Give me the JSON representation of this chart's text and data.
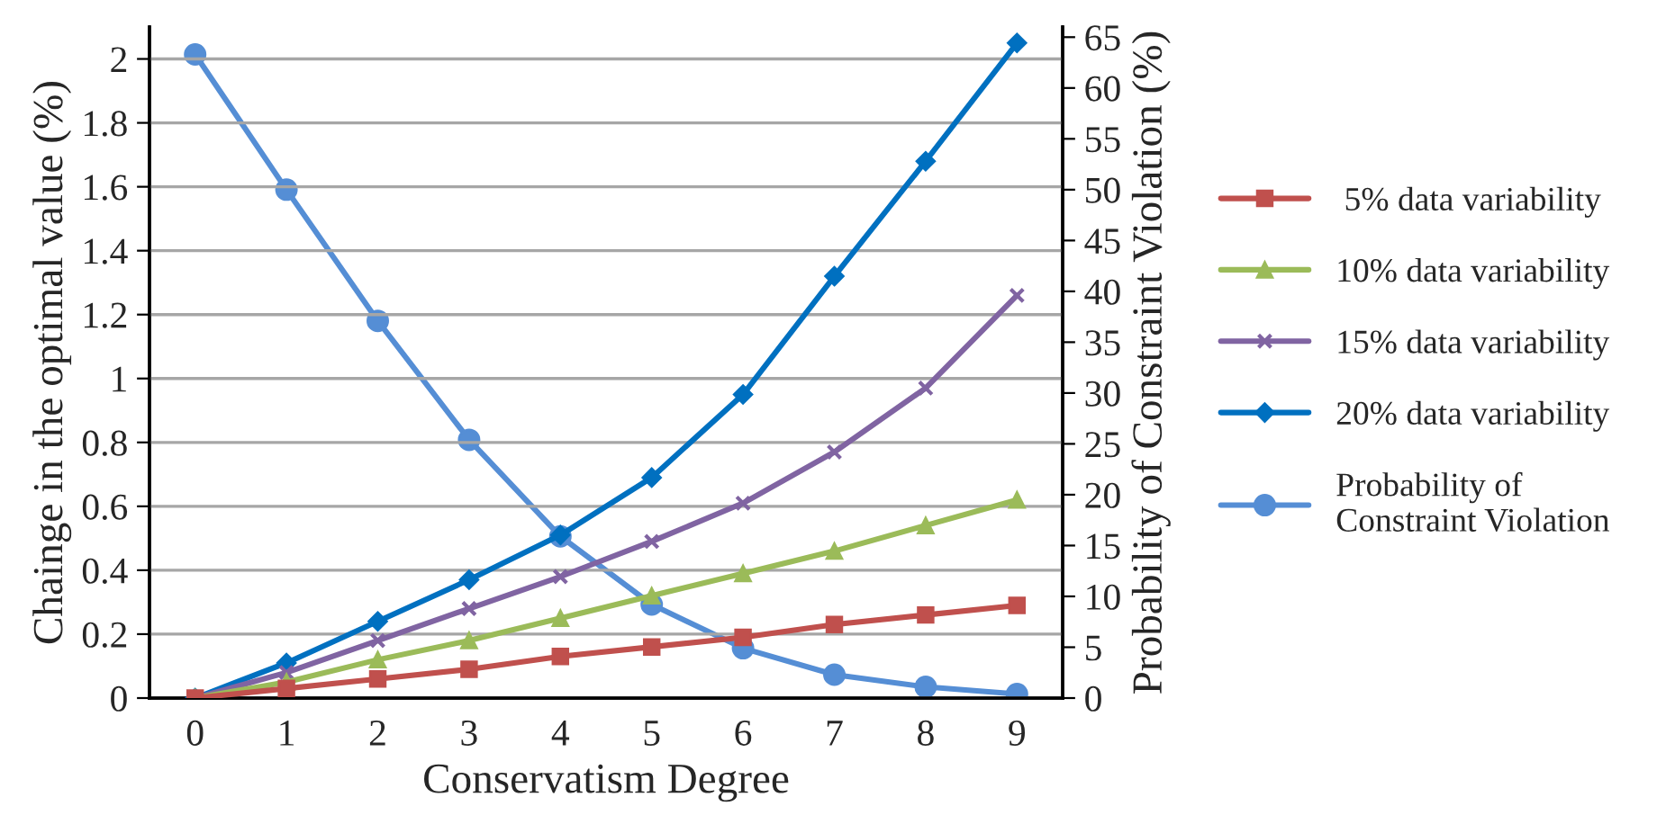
{
  "chart_data": {
    "type": "line",
    "xlabel": "Conservatism Degree",
    "ylabel": "Chainge in the optimal value (%)",
    "y2label": "Probability of Constraint Violation (%)",
    "categories": [
      "0",
      "1",
      "2",
      "3",
      "4",
      "5",
      "6",
      "7",
      "8",
      "9"
    ],
    "ylim": [
      0,
      2.1
    ],
    "yticks": [
      0,
      0.2,
      0.4,
      0.6,
      0.8,
      1,
      1.2,
      1.4,
      1.6,
      1.8,
      2
    ],
    "y2lim": [
      0,
      66
    ],
    "y2ticks": [
      0,
      5,
      10,
      15,
      20,
      25,
      30,
      35,
      40,
      45,
      50,
      55,
      60,
      65
    ],
    "grid": "y",
    "legend": "right",
    "series": [
      {
        "name": " 5% data variability",
        "color": "#c0504d",
        "marker": "square",
        "values": [
          0,
          0.03,
          0.06,
          0.09,
          0.13,
          0.16,
          0.19,
          0.23,
          0.26,
          0.29
        ]
      },
      {
        "name": "10% data variability",
        "color": "#9bbb59",
        "marker": "triangle",
        "values": [
          0,
          0.05,
          0.12,
          0.18,
          0.25,
          0.32,
          0.39,
          0.46,
          0.54,
          0.62
        ]
      },
      {
        "name": "15% data variability",
        "color": "#8064a2",
        "marker": "cross",
        "values": [
          0,
          0.08,
          0.18,
          0.28,
          0.38,
          0.49,
          0.61,
          0.77,
          0.97,
          1.26
        ]
      },
      {
        "name": "20% data variability",
        "color": "#0070c0",
        "marker": "diamond",
        "values": [
          0,
          0.11,
          0.24,
          0.37,
          0.51,
          0.69,
          0.95,
          1.32,
          1.68,
          2.05
        ]
      },
      {
        "name": "Probability of\nConstraint Violation",
        "color": "#558ed5",
        "marker": "circle",
        "axis": "y2",
        "values": [
          63.3,
          50.0,
          37.1,
          25.4,
          15.9,
          9.2,
          4.9,
          2.3,
          1.1,
          0.4
        ]
      }
    ]
  }
}
